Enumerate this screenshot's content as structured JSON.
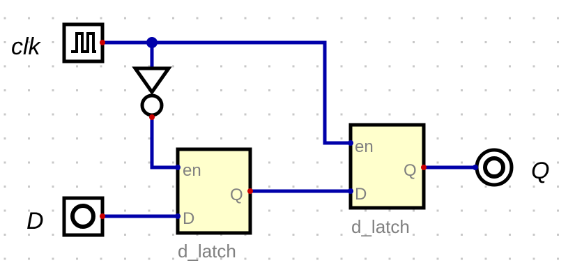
{
  "inputs": {
    "clk": {
      "label": "clk"
    },
    "d": {
      "label": "D"
    }
  },
  "outputs": {
    "q": {
      "label": "Q"
    }
  },
  "latches": [
    {
      "name": "d_latch",
      "port_en": "en",
      "port_d": "D",
      "port_q": "Q"
    },
    {
      "name": "d_latch",
      "port_en": "en",
      "port_d": "D",
      "port_q": "Q"
    }
  ],
  "colors": {
    "wire": "#0000aa",
    "pin": "#cc0000",
    "latch_fill": "#ffffcc",
    "grid_dot": "#c8c8c8"
  },
  "icons": {
    "clock": "clock-source-icon",
    "input": "input-pin-icon",
    "output": "output-pin-icon",
    "inverter": "not-gate-icon"
  }
}
